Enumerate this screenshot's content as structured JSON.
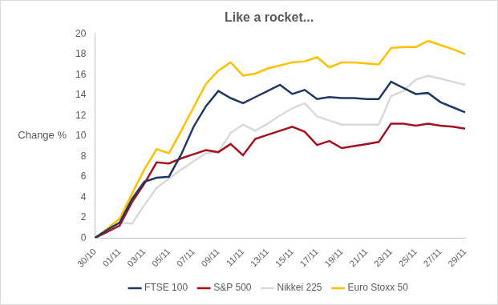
{
  "chart_data": {
    "type": "line",
    "title": "Like a rocket...",
    "y_label": "Change %",
    "categories": [
      "30/10",
      null,
      "01/11",
      null,
      "03/11",
      null,
      "05/11",
      null,
      "07/11",
      null,
      "09/11",
      null,
      "11/11",
      null,
      "13/11",
      null,
      "15/11",
      null,
      "17/11",
      null,
      "19/11",
      null,
      "21/11",
      null,
      "23/11",
      null,
      "25/11",
      null,
      "27/11",
      null,
      "29/11"
    ],
    "series": [
      {
        "name": "FTSE 100",
        "color": "#1f3864",
        "values": [
          0,
          0.8,
          1.5,
          3.8,
          5.5,
          5.9,
          6.0,
          8.2,
          10.9,
          12.9,
          14.4,
          13.7,
          13.2,
          13.8,
          14.4,
          15.0,
          14.1,
          14.5,
          13.6,
          13.8,
          13.7,
          13.7,
          13.6,
          13.6,
          15.3,
          14.7,
          14.1,
          14.2,
          13.3,
          12.8,
          12.3
        ]
      },
      {
        "name": "S&P 500",
        "color": "#a50f1e",
        "values": [
          0,
          0.6,
          1.2,
          3.5,
          5.3,
          7.4,
          7.3,
          7.8,
          8.2,
          8.6,
          8.4,
          9.2,
          8.1,
          9.7,
          10.1,
          10.5,
          10.9,
          10.4,
          9.1,
          9.5,
          8.8,
          9.0,
          9.2,
          9.4,
          11.2,
          11.2,
          11.0,
          11.2,
          11.0,
          10.9,
          10.7
        ]
      },
      {
        "name": "Nikkei 225",
        "color": "#d9d9d9",
        "values": [
          0,
          0.8,
          1.5,
          1.4,
          3.2,
          4.9,
          5.8,
          6.7,
          7.5,
          8.3,
          8.4,
          10.3,
          11.1,
          10.5,
          11.2,
          12.0,
          12.7,
          13.2,
          11.9,
          11.5,
          11.1,
          11.1,
          11.1,
          11.1,
          13.9,
          14.4,
          15.5,
          15.9,
          15.6,
          15.3,
          15.0
        ]
      },
      {
        "name": "Euro Stoxx 50",
        "color": "#ffc000",
        "values": [
          0,
          0.9,
          1.9,
          4.3,
          6.7,
          8.7,
          8.3,
          10.5,
          12.8,
          15.1,
          16.4,
          17.2,
          15.9,
          16.1,
          16.6,
          16.9,
          17.2,
          17.3,
          17.7,
          16.7,
          17.2,
          17.2,
          17.1,
          17.0,
          18.6,
          18.7,
          18.7,
          19.3,
          18.9,
          18.5,
          18.0
        ]
      }
    ],
    "ylim": [
      0,
      20
    ],
    "yticks": [
      0,
      2,
      4,
      6,
      8,
      10,
      12,
      14,
      16,
      18,
      20
    ],
    "grid": false,
    "legend": "bottom"
  }
}
